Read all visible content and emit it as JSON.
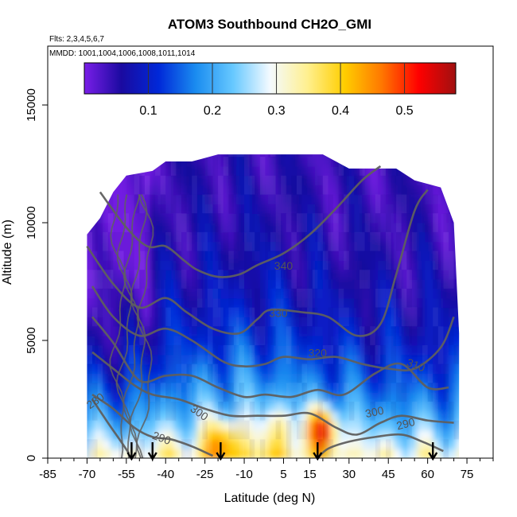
{
  "chart_data": {
    "type": "heatmap",
    "title": "ATOM3 Southbound CH2O_GMI",
    "subtitle_flights": "Flts: 2,3,4,5,6,7",
    "subtitle_dates": "MMDD: 1001,1004,1006,1008,1011,1014",
    "xlabel": "Latitude (deg N)",
    "ylabel": "Altitude (m)",
    "xlim": [
      -85,
      85
    ],
    "ylim": [
      0,
      17500
    ],
    "x_ticks": [
      -85,
      -70,
      -55,
      -40,
      -25,
      -10,
      5,
      15,
      30,
      45,
      60,
      75
    ],
    "y_ticks": [
      0,
      5000,
      10000,
      15000
    ],
    "colorbar": {
      "range": [
        0,
        0.58
      ],
      "ticks": [
        0.1,
        0.2,
        0.3,
        0.4,
        0.5
      ],
      "colors": [
        "#7a1ee8",
        "#1a0aa0",
        "#0028d8",
        "#1a8cf0",
        "#66c8ff",
        "#f4faff",
        "#fff090",
        "#ffce00",
        "#ff7800",
        "#ff0000",
        "#a01010"
      ]
    },
    "field_extent": {
      "lat_range": [
        -70,
        72
      ],
      "top_altitude_by_lat": [
        [
          -70,
          9500
        ],
        [
          -65,
          10200
        ],
        [
          -60,
          11300
        ],
        [
          -55,
          12000
        ],
        [
          -45,
          12200
        ],
        [
          -40,
          12600
        ],
        [
          -30,
          12600
        ],
        [
          -20,
          12900
        ],
        [
          0,
          12900
        ],
        [
          20,
          12900
        ],
        [
          30,
          12300
        ],
        [
          48,
          12300
        ],
        [
          55,
          11800
        ],
        [
          65,
          11500
        ],
        [
          70,
          10000
        ],
        [
          72,
          5300
        ]
      ]
    },
    "high_values": [
      {
        "lat": 20,
        "alt": 1300,
        "value": 0.52
      },
      {
        "lat": -18,
        "alt": 800,
        "value": 0.4
      },
      {
        "lat": 5,
        "alt": 1500,
        "value": 0.34
      }
    ],
    "contour_label_values": [
      340,
      330,
      320,
      310,
      300,
      300,
      290,
      290,
      280
    ],
    "contours": [
      {
        "level": 340,
        "points": [
          [
            -65,
            11300
          ],
          [
            -55,
            9800
          ],
          [
            -47,
            9000
          ],
          [
            -40,
            9000
          ],
          [
            -33,
            8400
          ],
          [
            -28,
            8000
          ],
          [
            -20,
            7700
          ],
          [
            -12,
            7800
          ],
          [
            -5,
            8200
          ],
          [
            5,
            8700
          ],
          [
            15,
            9500
          ],
          [
            25,
            10600
          ],
          [
            35,
            11800
          ],
          [
            42,
            12400
          ]
        ]
      },
      {
        "level": 330,
        "points": [
          [
            -70,
            9000
          ],
          [
            -60,
            7400
          ],
          [
            -50,
            6400
          ],
          [
            -40,
            6800
          ],
          [
            -32,
            6200
          ],
          [
            -22,
            5500
          ],
          [
            -12,
            5300
          ],
          [
            -5,
            5900
          ],
          [
            0,
            6300
          ],
          [
            12,
            6200
          ],
          [
            22,
            6000
          ],
          [
            33,
            5200
          ],
          [
            42,
            5700
          ],
          [
            48,
            7800
          ],
          [
            55,
            10500
          ],
          [
            60,
            11400
          ]
        ]
      },
      {
        "level": 320,
        "points": [
          [
            -68,
            7300
          ],
          [
            -60,
            6000
          ],
          [
            -50,
            5200
          ],
          [
            -40,
            5500
          ],
          [
            -30,
            5000
          ],
          [
            -18,
            4100
          ],
          [
            -10,
            3900
          ],
          [
            -2,
            4000
          ],
          [
            5,
            4300
          ],
          [
            15,
            4200
          ],
          [
            25,
            4300
          ],
          [
            35,
            4000
          ],
          [
            45,
            3800
          ],
          [
            55,
            3800
          ],
          [
            65,
            4700
          ],
          [
            70,
            6000
          ]
        ]
      },
      {
        "level": 310,
        "points": [
          [
            -68,
            6000
          ],
          [
            -60,
            4900
          ],
          [
            -50,
            3300
          ],
          [
            -40,
            3500
          ],
          [
            -30,
            3500
          ],
          [
            -20,
            3000
          ],
          [
            -10,
            2600
          ],
          [
            -2,
            2700
          ],
          [
            8,
            2600
          ],
          [
            18,
            2900
          ],
          [
            28,
            2700
          ],
          [
            40,
            3600
          ],
          [
            50,
            4000
          ],
          [
            60,
            3000
          ],
          [
            68,
            3000
          ]
        ]
      },
      {
        "level": 300,
        "points": [
          [
            -68,
            4500
          ],
          [
            -60,
            3800
          ],
          [
            -52,
            3100
          ],
          [
            -45,
            2700
          ],
          [
            -35,
            2500
          ],
          [
            -25,
            2100
          ],
          [
            -15,
            1800
          ],
          [
            -5,
            1800
          ],
          [
            5,
            1800
          ],
          [
            15,
            1900
          ],
          [
            25,
            1300
          ],
          [
            33,
            1000
          ],
          [
            42,
            1500
          ],
          [
            50,
            1800
          ],
          [
            60,
            1600
          ],
          [
            70,
            1500
          ]
        ]
      },
      {
        "level": 290,
        "points": [
          [
            -68,
            2700
          ],
          [
            -60,
            2100
          ],
          [
            -52,
            1300
          ],
          [
            -45,
            900
          ],
          [
            -38,
            800
          ],
          [
            -30,
            500
          ],
          [
            -22,
            100
          ]
        ]
      },
      {
        "level": 290,
        "points": [
          [
            18,
            0
          ],
          [
            22,
            400
          ],
          [
            30,
            700
          ],
          [
            40,
            900
          ],
          [
            50,
            1000
          ],
          [
            58,
            700
          ],
          [
            66,
            300
          ]
        ]
      },
      {
        "level": 280,
        "points": [
          [
            -68,
            2500
          ],
          [
            -62,
            1500
          ],
          [
            -57,
            700
          ],
          [
            -54,
            200
          ]
        ]
      }
    ],
    "profile_arrow_latitudes": [
      -53,
      -45,
      -19,
      18,
      62
    ]
  }
}
